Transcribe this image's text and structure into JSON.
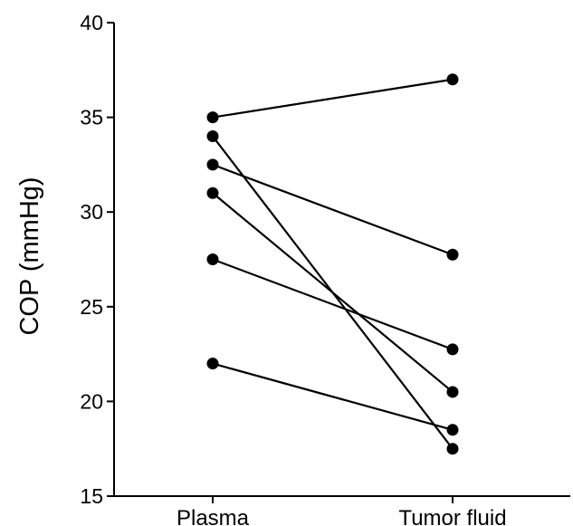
{
  "chart_data": {
    "type": "line",
    "categories": [
      "Plasma",
      "Tumor fluid"
    ],
    "ylabel": "COP (mmHg)",
    "xlabel": "",
    "ylim": [
      15,
      40
    ],
    "yticks": [
      15,
      20,
      25,
      30,
      35,
      40
    ],
    "ytick_labels": [
      "15",
      "20",
      "25",
      "30",
      "35",
      "40"
    ],
    "grid": false,
    "legend": "none",
    "series": [
      {
        "values": [
          35,
          37
        ]
      },
      {
        "values": [
          34,
          17.5
        ]
      },
      {
        "values": [
          32.5,
          27.75
        ]
      },
      {
        "values": [
          31,
          20.5
        ]
      },
      {
        "values": [
          27.5,
          22.75
        ]
      },
      {
        "values": [
          22,
          18.5
        ]
      }
    ],
    "colors": {
      "line": "#000000",
      "marker": "#000000",
      "axis": "#000000"
    }
  }
}
